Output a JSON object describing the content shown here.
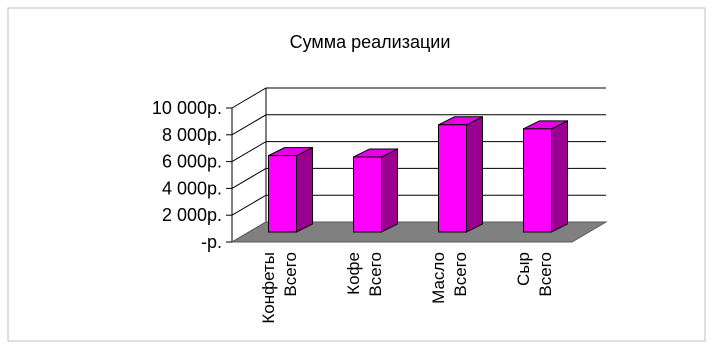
{
  "chart_data": {
    "type": "bar",
    "title": "Сумма реализации",
    "categories": [
      [
        "Конфеты",
        "Всего"
      ],
      [
        "Кофе",
        "Всего"
      ],
      [
        "Масло",
        "Всего"
      ],
      [
        "Сыр",
        "Всего"
      ]
    ],
    "values": [
      5700,
      5600,
      8000,
      7700
    ],
    "ylim": [
      0,
      10000
    ],
    "yticks": [
      0,
      2000,
      4000,
      6000,
      8000,
      10000
    ],
    "ytick_labels": [
      "-р.",
      "2 000р.",
      "4 000р.",
      "6 000р.",
      "8 000р.",
      "10 000р."
    ],
    "grid": true,
    "legend": "none",
    "colors": {
      "bar_front": "#ff00ff",
      "bar_side": "#99008f",
      "bar_top": "#e600e6",
      "floor": "#808080",
      "grid": "#000000",
      "frame": "#bfbfbf"
    }
  }
}
